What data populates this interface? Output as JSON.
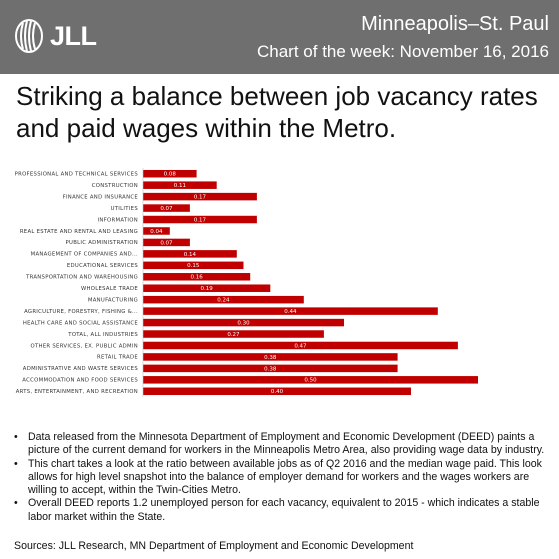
{
  "header": {
    "logo_text": "JLL",
    "city": "Minneapolis–St. Paul",
    "chart_of_week": "Chart of the week: November 16, 2016",
    "bg_color": "#6f6f70"
  },
  "headline": "Striking a balance between job vacancy rates and paid wages within the Metro.",
  "chart_data": {
    "type": "bar",
    "orientation": "horizontal",
    "bar_color": "#c00000",
    "categories": [
      "PROFESSIONAL AND TECHNICAL SERVICES",
      "CONSTRUCTION",
      "FINANCE AND INSURANCE",
      "UTILITIES",
      "INFORMATION",
      "REAL ESTATE AND RENTAL AND LEASING",
      "PUBLIC ADMINISTRATION",
      "MANAGEMENT OF COMPANIES AND...",
      "EDUCATIONAL SERVICES",
      "TRANSPORTATION AND WAREHOUSING",
      "WHOLESALE TRADE",
      "MANUFACTURING",
      "AGRICULTURE, FORESTRY, FISHING &...",
      "HEALTH CARE AND SOCIAL ASSISTANCE",
      "TOTAL, ALL INDUSTRIES",
      "OTHER SERVICES, EX. PUBLIC ADMIN",
      "RETAIL TRADE",
      "ADMINISTRATIVE AND WASTE SERVICES",
      "ACCOMMODATION AND FOOD SERVICES",
      "ARTS, ENTERTAINMENT, AND RECREATION"
    ],
    "values": [
      0.08,
      0.11,
      0.17,
      0.07,
      0.17,
      0.04,
      0.07,
      0.14,
      0.15,
      0.16,
      0.19,
      0.24,
      0.44,
      0.3,
      0.27,
      0.47,
      0.38,
      0.38,
      0.5,
      0.4
    ],
    "value_labels": [
      "0.08",
      "0.11",
      "0.17",
      "0.07",
      "0.17",
      "0.04",
      "0.07",
      "0.14",
      "0.15",
      "0.16",
      "0.19",
      "0.24",
      "0.44",
      "0.30",
      "0.27",
      "0.47",
      "0.38",
      "0.38",
      "0.50",
      "0.40"
    ],
    "xlim": [
      0,
      0.5
    ],
    "title": "",
    "xlabel": "",
    "ylabel": "",
    "grid": false
  },
  "bullets": [
    "Data released from the Minnesota Department of Employment and Economic Development (DEED) paints a picture of the current demand for workers in the Minneapolis Metro Area, also providing wage data by industry.",
    "This chart takes a look at the ratio between available jobs as of Q2 2016 and the median wage paid. This look allows for high level snapshot into the balance of employer demand for workers and the wages workers are willing to accept, within the Twin-Cities Metro.",
    "Overall DEED reports 1.2 unemployed person for each vacancy, equivalent to 2015 - which indicates a stable labor market within the State."
  ],
  "bullet_symbol": "•",
  "sources": "Sources: JLL Research, MN Department of Employment and Economic Development"
}
